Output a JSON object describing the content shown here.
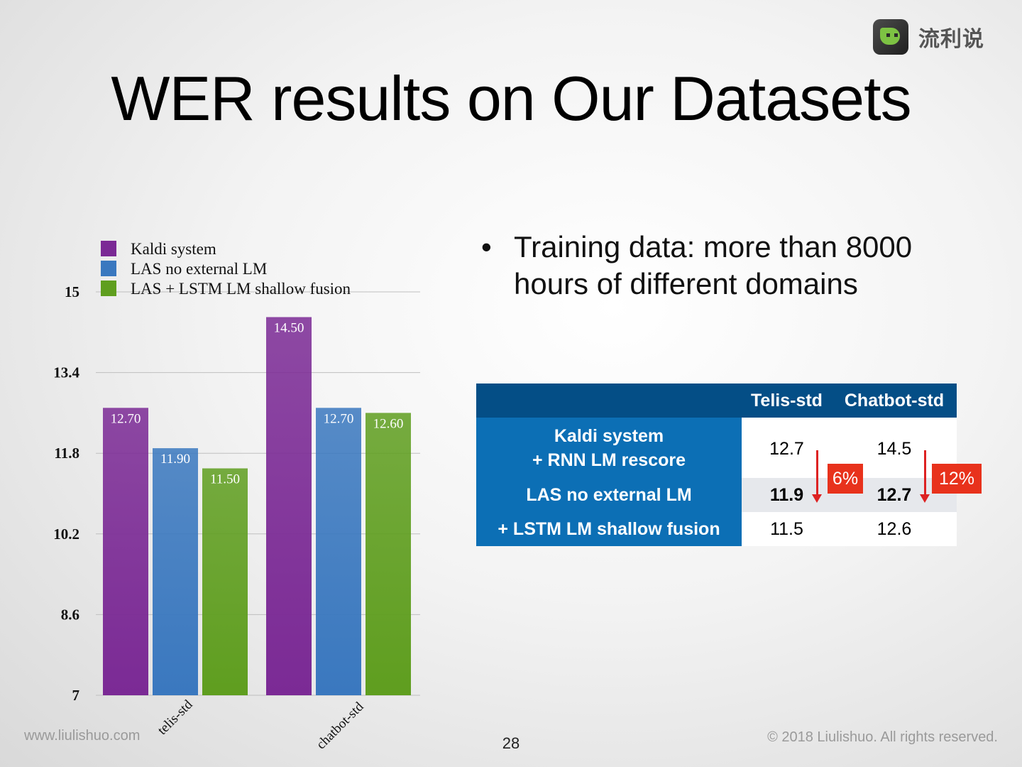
{
  "logo": {
    "text": "流利说"
  },
  "title": "WER results on Our Datasets",
  "bullet": "Training data: more than 8000 hours of different domains",
  "table": {
    "headers": [
      "",
      "Telis-std",
      "Chatbot-std"
    ],
    "rows": [
      {
        "label_line1": "Kaldi system",
        "label_line2": "+ RNN LM rescore",
        "telis": "12.7",
        "chatbot": "14.5"
      },
      {
        "label": "LAS no external LM",
        "telis": "11.9",
        "chatbot": "12.7"
      },
      {
        "label": "+ LSTM LM shallow fusion",
        "telis": "11.5",
        "chatbot": "12.6"
      }
    ],
    "badges": {
      "telis": "6%",
      "chatbot": "12%"
    },
    "colors": {
      "header": "#044e86",
      "label": "#0c6fb5",
      "badge": "#e8321c"
    }
  },
  "chart_data": {
    "type": "bar",
    "categories": [
      "telis-std",
      "chatbot-std"
    ],
    "series": [
      {
        "name": "Kaldi system",
        "values": [
          12.7,
          14.5
        ],
        "color": "#7b2a95"
      },
      {
        "name": "LAS no external LM",
        "values": [
          11.9,
          12.7
        ],
        "color": "#3a78bf"
      },
      {
        "name": "LAS + LSTM LM shallow fusion",
        "values": [
          11.5,
          12.6
        ],
        "color": "#5f9e1f"
      }
    ],
    "value_labels": [
      [
        "12.70",
        "14.50"
      ],
      [
        "11.90",
        "12.70"
      ],
      [
        "11.50",
        "12.60"
      ]
    ],
    "yticks": [
      "7",
      "8.6",
      "10.2",
      "11.8",
      "13.4",
      "15"
    ],
    "ylim": [
      7,
      15
    ],
    "grid": true,
    "legend_position": "top-left"
  },
  "footer": {
    "left": "www.liulishuo.com",
    "right": "© 2018 Liulishuo. All rights reserved.",
    "page": "28"
  }
}
